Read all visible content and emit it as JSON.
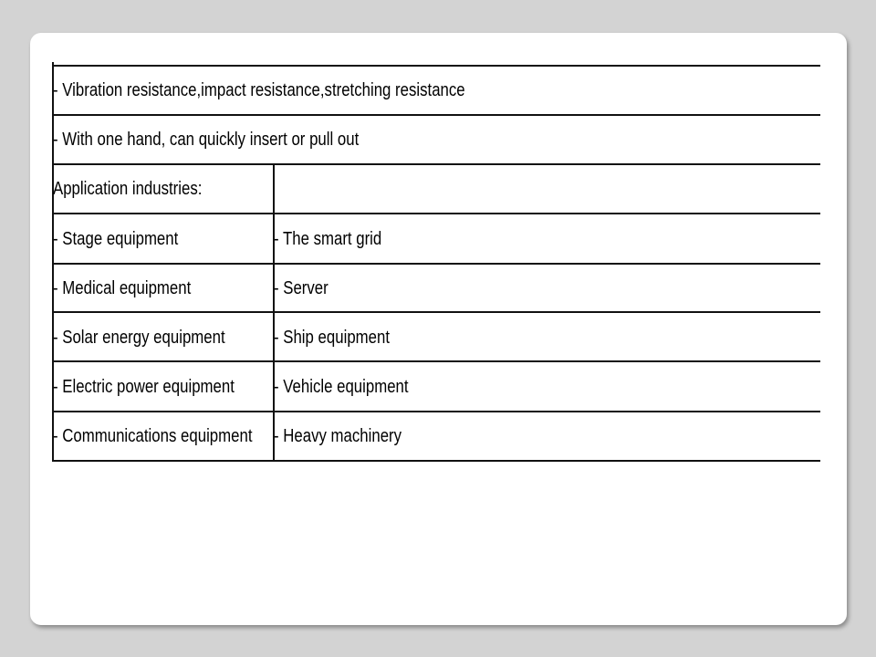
{
  "rows_full": [
    "- Vibration resistance,impact resistance,stretching resistance",
    "- With one hand, can quickly insert or pull out"
  ],
  "industries": {
    "heading": "Application industries:",
    "left": [
      "- Stage equipment",
      "- Medical equipment",
      "- Solar energy equipment",
      "- Electric power equipment",
      "- Communications equipment"
    ],
    "right": [
      "- The smart grid",
      "- Server",
      "- Ship equipment",
      "- Vehicle equipment",
      "- Heavy machinery"
    ]
  }
}
